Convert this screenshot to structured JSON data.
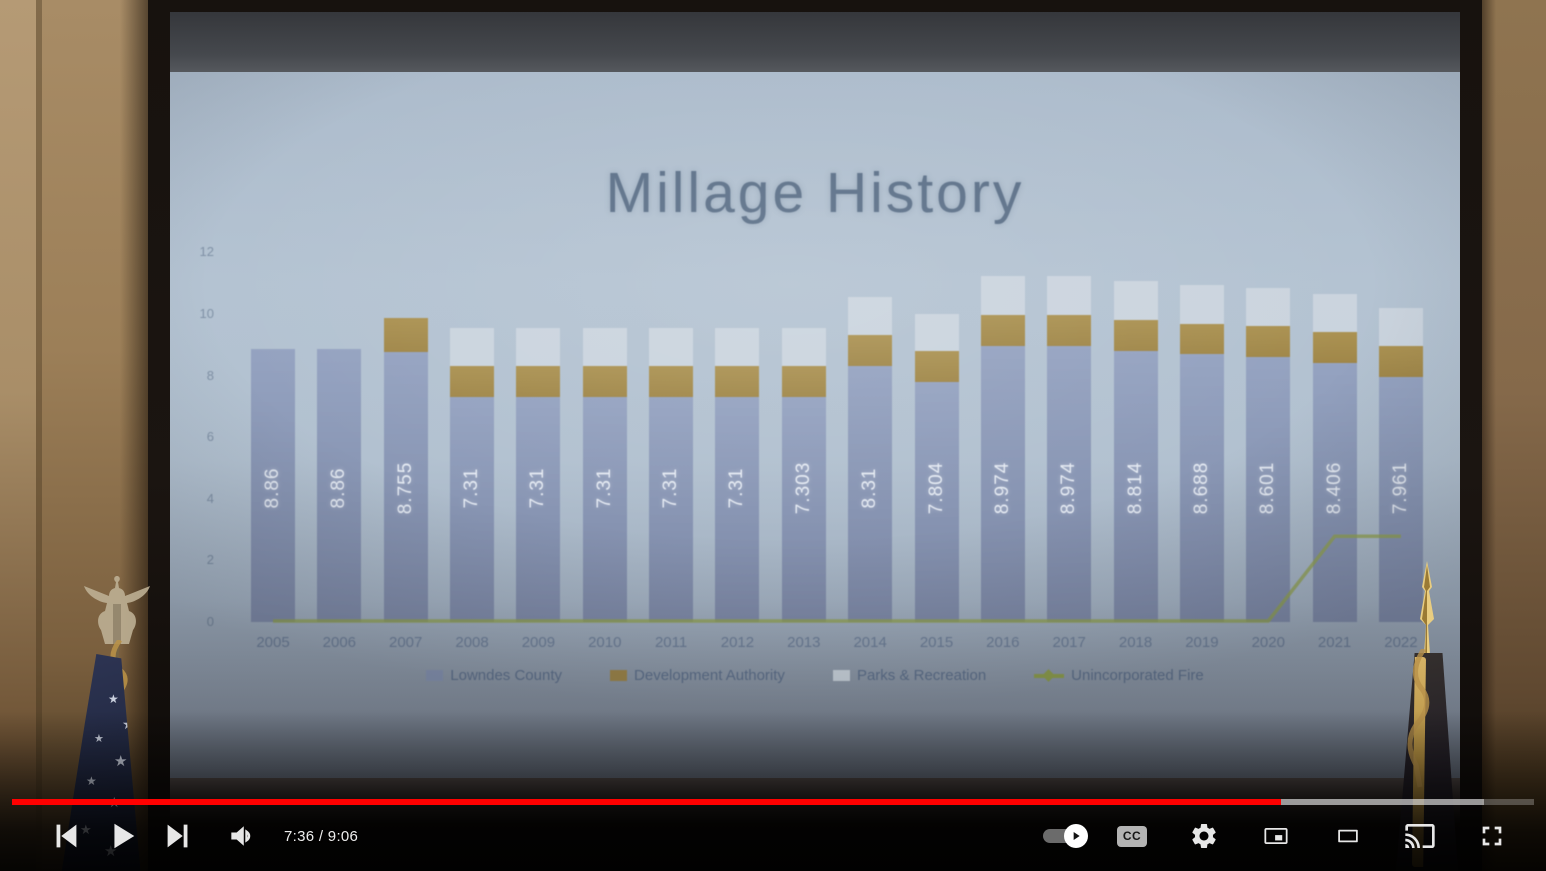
{
  "slide": {
    "title": "Millage History"
  },
  "chart_data": {
    "type": "bar",
    "stacked": true,
    "title": "Millage History",
    "categories": [
      "2005",
      "2006",
      "2007",
      "2008",
      "2009",
      "2010",
      "2011",
      "2012",
      "2013",
      "2014",
      "2015",
      "2016",
      "2017",
      "2018",
      "2019",
      "2020",
      "2021",
      "2022"
    ],
    "series": [
      {
        "name": "Lowndes County",
        "type": "bar",
        "color_class": "seg-county",
        "values": [
          8.86,
          8.86,
          8.755,
          7.31,
          7.31,
          7.31,
          7.31,
          7.31,
          7.303,
          8.31,
          7.804,
          8.974,
          8.974,
          8.814,
          8.688,
          8.601,
          8.406,
          7.961
        ]
      },
      {
        "name": "Development Authority",
        "type": "bar",
        "color_class": "seg-dev",
        "values": [
          0,
          0,
          1.1,
          1.0,
          1.0,
          1.0,
          1.0,
          1.0,
          1.0,
          1.0,
          1.0,
          1.0,
          1.0,
          1.0,
          1.0,
          1.0,
          1.0,
          1.0
        ]
      },
      {
        "name": "Parks & Recreation",
        "type": "bar",
        "color_class": "seg-parks",
        "values": [
          0,
          0,
          0,
          1.25,
          1.25,
          1.25,
          1.25,
          1.25,
          1.25,
          1.25,
          1.2,
          1.25,
          1.25,
          1.25,
          1.25,
          1.25,
          1.25,
          1.25
        ]
      },
      {
        "name": "Unincorporated Fire",
        "type": "line",
        "color": "#90a04c",
        "values": [
          0,
          0,
          0,
          0,
          0,
          0,
          0,
          0,
          0,
          0,
          0,
          0,
          0,
          0,
          0,
          0,
          2.75,
          2.75
        ]
      }
    ],
    "bar_labels": [
      "8.86",
      "8.86",
      "8.755",
      "7.31",
      "7.31",
      "7.31",
      "7.31",
      "7.31",
      "7.303",
      "8.31",
      "7.804",
      "8.974",
      "8.974",
      "8.814",
      "8.688",
      "8.601",
      "8.406",
      "7.961"
    ],
    "ylim": [
      0,
      12
    ],
    "yticks": [
      0,
      2,
      4,
      6,
      8,
      10,
      12
    ],
    "grid": false,
    "legend_position": "bottom",
    "legend_colors": {
      "Lowndes County": "#8794b2",
      "Development Authority": "#a08749",
      "Parks & Recreation": "#cfd8e0",
      "Unincorporated Fire": "#90a04c"
    }
  },
  "video_player": {
    "time_display": "7:36 / 9:06",
    "current_time": "7:36",
    "duration": "9:06",
    "progress": {
      "played_percent": 83.4,
      "buffered_percent": 96.7,
      "accent_color": "#ff0000"
    },
    "controls": {
      "previous_label": "Previous",
      "play_label": "Play",
      "next_label": "Next",
      "volume_label": "Volume",
      "autoplay_label": "Autoplay is on",
      "subtitles_label": "Subtitles/closed captions",
      "cc_badge": "CC",
      "settings_label": "Settings",
      "miniplayer_label": "Miniplayer",
      "theater_label": "Theater mode",
      "cast_label": "Play on TV",
      "fullscreen_label": "Full screen"
    }
  }
}
